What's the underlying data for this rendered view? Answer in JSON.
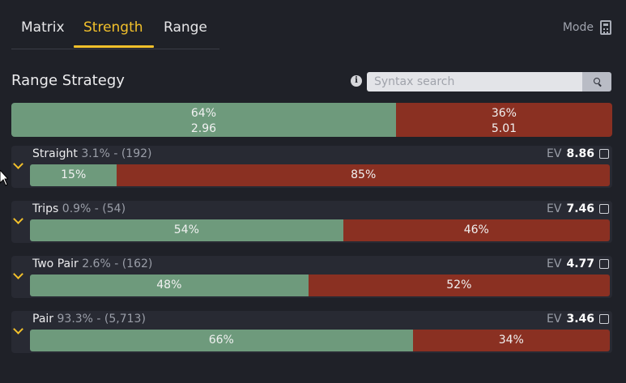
{
  "tabs": [
    {
      "label": "Matrix",
      "active": false
    },
    {
      "label": "Strength",
      "active": true
    },
    {
      "label": "Range",
      "active": false
    }
  ],
  "mode": {
    "label": "Mode",
    "icon": "calculator-icon"
  },
  "section": {
    "title": "Range Strategy"
  },
  "search": {
    "placeholder": "Syntax search",
    "value": ""
  },
  "colors": {
    "accent": "#f2c02b",
    "green": "#6e9a7c",
    "red": "#8a3022",
    "background": "#1f2128"
  },
  "overall": {
    "green": {
      "pct_label": "64%",
      "value": "2.96",
      "fraction": 0.64
    },
    "red": {
      "pct_label": "36%",
      "value": "5.01",
      "fraction": 0.36
    }
  },
  "rows": [
    {
      "label": "Straight",
      "stats": "3.1% - (192)",
      "ev_label": "EV",
      "ev": "8.86",
      "green_label": "15%",
      "red_label": "85%",
      "green_fraction": 0.15
    },
    {
      "label": "Trips",
      "stats": "0.9% - (54)",
      "ev_label": "EV",
      "ev": "7.46",
      "green_label": "54%",
      "red_label": "46%",
      "green_fraction": 0.54
    },
    {
      "label": "Two Pair",
      "stats": "2.6% - (162)",
      "ev_label": "EV",
      "ev": "4.77",
      "green_label": "48%",
      "red_label": "52%",
      "green_fraction": 0.48
    },
    {
      "label": "Pair",
      "stats": "93.3% - (5,713)",
      "ev_label": "EV",
      "ev": "3.46",
      "green_label": "66%",
      "red_label": "34%",
      "green_fraction": 0.66
    }
  ]
}
